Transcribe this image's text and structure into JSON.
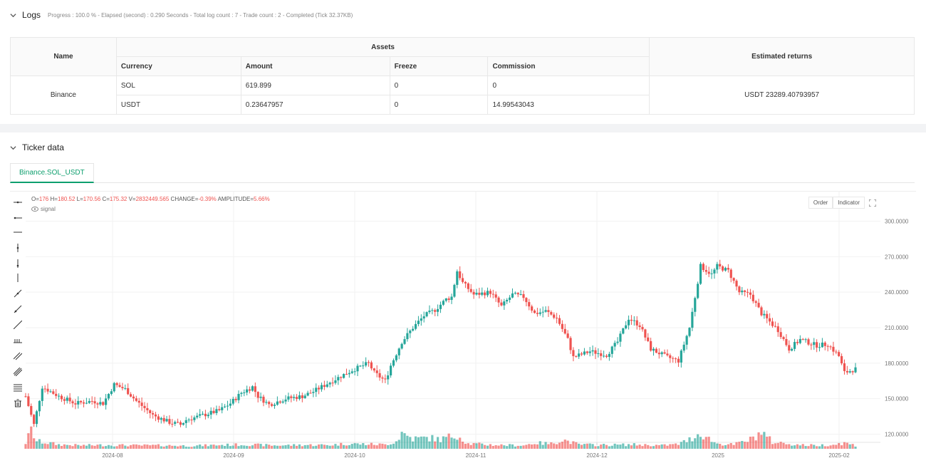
{
  "logs": {
    "title": "Logs",
    "summary": "Progress : 100.0 % - Elapsed (second) : 0.290  Seconds - Total log count : 7 - Trade count : 2 - Completed (Tick 32.37KB)"
  },
  "assets_table": {
    "col_name": "Name",
    "col_assets": "Assets",
    "col_returns": "Estimated returns",
    "sub_headers": [
      "Currency",
      "Amount",
      "Freeze",
      "Commission"
    ],
    "exchange": "Binance",
    "rows": [
      {
        "currency": "SOL",
        "amount": "619.899",
        "freeze": "0",
        "commission": "0"
      },
      {
        "currency": "USDT",
        "amount": "0.23647957",
        "freeze": "0",
        "commission": "14.99543043"
      }
    ],
    "returns": "USDT 23289.40793957"
  },
  "ticker": {
    "title": "Ticker data",
    "tab": "Binance.SOL_USDT"
  },
  "chart_header": {
    "o_label": "O=",
    "o": "176",
    "h_label": " H=",
    "h": "180.52",
    "l_label": " L=",
    "l": "170.56",
    "c_label": " C=",
    "c": "175.32",
    "v_label": " V=",
    "v": "2832449.565",
    "chg_label": " CHANGE=",
    "chg": "-0.39%",
    "amp_label": " AMPLITUDE=",
    "amp": "5.66%",
    "signal": "signal",
    "order_btn": "Order",
    "indicator_btn": "Indicator"
  },
  "colors": {
    "up": "#26a69a",
    "down": "#ef5350",
    "accent": "#0e9f6e"
  },
  "chart_data": {
    "type": "candlestick",
    "y_ticks": [
      "120.0000",
      "150.0000",
      "180.0000",
      "210.0000",
      "240.0000",
      "270.0000",
      "300.0000"
    ],
    "x_ticks": [
      "2024-08",
      "2024-09",
      "2024-10",
      "2024-11",
      "2024-12",
      "2025",
      "2025-02"
    ],
    "ylim": [
      95,
      325
    ],
    "price_path": [
      [
        0,
        152
      ],
      [
        3,
        128
      ],
      [
        6,
        160
      ],
      [
        12,
        152
      ],
      [
        18,
        146
      ],
      [
        24,
        148
      ],
      [
        28,
        146
      ],
      [
        32,
        162
      ],
      [
        36,
        158
      ],
      [
        40,
        148
      ],
      [
        46,
        136
      ],
      [
        52,
        130
      ],
      [
        56,
        128
      ],
      [
        58,
        132
      ],
      [
        64,
        136
      ],
      [
        70,
        140
      ],
      [
        74,
        146
      ],
      [
        78,
        155
      ],
      [
        82,
        160
      ],
      [
        84,
        152
      ],
      [
        88,
        145
      ],
      [
        94,
        150
      ],
      [
        100,
        152
      ],
      [
        104,
        156
      ],
      [
        110,
        164
      ],
      [
        114,
        169
      ],
      [
        118,
        174
      ],
      [
        124,
        180
      ],
      [
        126,
        172
      ],
      [
        130,
        165
      ],
      [
        132,
        178
      ],
      [
        136,
        198
      ],
      [
        140,
        210
      ],
      [
        144,
        220
      ],
      [
        148,
        225
      ],
      [
        152,
        234
      ],
      [
        154,
        236
      ],
      [
        156,
        258
      ],
      [
        158,
        248
      ],
      [
        162,
        238
      ],
      [
        168,
        240
      ],
      [
        172,
        228
      ],
      [
        176,
        238
      ],
      [
        180,
        236
      ],
      [
        184,
        222
      ],
      [
        188,
        224
      ],
      [
        192,
        218
      ],
      [
        196,
        200
      ],
      [
        198,
        185
      ],
      [
        204,
        190
      ],
      [
        210,
        187
      ],
      [
        214,
        198
      ],
      [
        218,
        218
      ],
      [
        222,
        212
      ],
      [
        226,
        192
      ],
      [
        232,
        185
      ],
      [
        236,
        182
      ],
      [
        240,
        210
      ],
      [
        244,
        262
      ],
      [
        248,
        255
      ],
      [
        250,
        262
      ],
      [
        254,
        258
      ],
      [
        258,
        240
      ],
      [
        262,
        238
      ],
      [
        266,
        222
      ],
      [
        272,
        208
      ],
      [
        276,
        192
      ],
      [
        280,
        200
      ],
      [
        286,
        195
      ],
      [
        290,
        196
      ],
      [
        294,
        186
      ],
      [
        296,
        172
      ],
      [
        300,
        175
      ]
    ],
    "volume_path": [
      [
        0,
        14
      ],
      [
        2,
        44
      ],
      [
        4,
        18
      ],
      [
        8,
        14
      ],
      [
        12,
        10
      ],
      [
        20,
        8
      ],
      [
        30,
        9
      ],
      [
        40,
        8
      ],
      [
        50,
        8
      ],
      [
        60,
        7
      ],
      [
        70,
        9
      ],
      [
        80,
        10
      ],
      [
        90,
        8
      ],
      [
        100,
        9
      ],
      [
        110,
        9
      ],
      [
        116,
        12
      ],
      [
        124,
        11
      ],
      [
        130,
        10
      ],
      [
        134,
        18
      ],
      [
        136,
        38
      ],
      [
        140,
        24
      ],
      [
        146,
        26
      ],
      [
        150,
        22
      ],
      [
        156,
        34
      ],
      [
        160,
        12
      ],
      [
        170,
        9
      ],
      [
        180,
        8
      ],
      [
        184,
        14
      ],
      [
        190,
        12
      ],
      [
        194,
        22
      ],
      [
        200,
        10
      ],
      [
        210,
        9
      ],
      [
        220,
        10
      ],
      [
        230,
        8
      ],
      [
        236,
        11
      ],
      [
        240,
        22
      ],
      [
        244,
        38
      ],
      [
        246,
        28
      ],
      [
        250,
        12
      ],
      [
        256,
        10
      ],
      [
        262,
        22
      ],
      [
        266,
        40
      ],
      [
        270,
        16
      ],
      [
        276,
        12
      ],
      [
        280,
        9
      ],
      [
        286,
        8
      ],
      [
        292,
        10
      ],
      [
        296,
        14
      ],
      [
        300,
        8
      ]
    ]
  }
}
